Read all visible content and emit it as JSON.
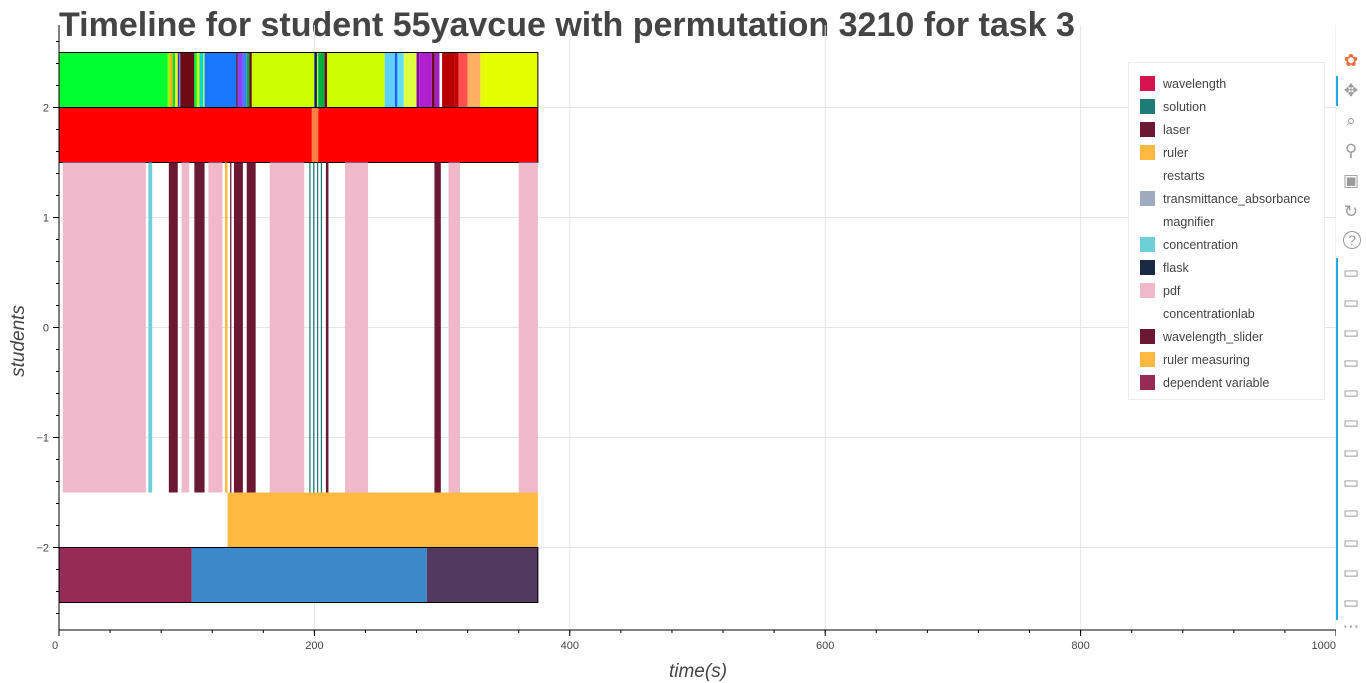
{
  "title": "Timeline for student 55yavcue with permutation 3210 for task 3",
  "chart_data": {
    "type": "timeline",
    "title": "Timeline for student 55yavcue with permutation 3210 for task 3",
    "xlabel": "time(s)",
    "ylabel": "students",
    "xlim": [
      0,
      1000
    ],
    "ylim": [
      -2.75,
      2.75
    ],
    "x_ticks": [
      0,
      200,
      400,
      600,
      800,
      1000
    ],
    "y_ticks": [
      -2,
      -1,
      0,
      1,
      2
    ],
    "y_tick_labels": [
      "−2",
      "−1",
      "0",
      "1",
      "2"
    ],
    "grid": true,
    "legend_position": "top-right",
    "legend": [
      {
        "label": "wavelength",
        "color": "#d6144f"
      },
      {
        "label": "solution",
        "color": "#1f7b76"
      },
      {
        "label": "laser",
        "color": "#6b1832"
      },
      {
        "label": "ruler",
        "color": "#ffb940"
      },
      {
        "label": "restarts",
        "color": "#ffffff"
      },
      {
        "label": "transmittance_absorbance",
        "color": "#9eabbf"
      },
      {
        "label": "magnifier",
        "color": "#ffffff"
      },
      {
        "label": "concentration",
        "color": "#6ecfd8"
      },
      {
        "label": "flask",
        "color": "#1a2a44"
      },
      {
        "label": "pdf",
        "color": "#f0b8cb"
      },
      {
        "label": "concentrationlab",
        "color": "#ffffff"
      },
      {
        "label": "wavelength_slider",
        "color": "#6b1832"
      },
      {
        "label": "ruler measuring",
        "color": "#ffb940"
      },
      {
        "label": "dependent variable",
        "color": "#962b55"
      }
    ],
    "rows": [
      {
        "y0": 2.0,
        "y1": 2.5,
        "outline": true,
        "segments": [
          [
            0,
            85,
            "#00ff2e"
          ],
          [
            85,
            87,
            "#9cf200"
          ],
          [
            87,
            89,
            "#ffb000"
          ],
          [
            89,
            91,
            "#00d640"
          ],
          [
            91,
            93,
            "#e6ff00"
          ],
          [
            93,
            94,
            "#a000c0"
          ],
          [
            94,
            95,
            "#00b4ff"
          ],
          [
            95,
            106,
            "#6e0a14"
          ],
          [
            106,
            108,
            "#00ff40"
          ],
          [
            108,
            110,
            "#d0ff00"
          ],
          [
            110,
            113,
            "#00d8d8"
          ],
          [
            113,
            114,
            "#c0ff40"
          ],
          [
            114,
            139,
            "#1a78ff"
          ],
          [
            139,
            140,
            "#6e0a14"
          ],
          [
            140,
            144,
            "#9040ff"
          ],
          [
            144,
            147,
            "#4080ff"
          ],
          [
            147,
            149,
            "#00b040"
          ],
          [
            149,
            151,
            "#6e0a14"
          ],
          [
            151,
            200,
            "#ccff00"
          ],
          [
            200,
            202,
            "#002080"
          ],
          [
            202,
            203,
            "#c0ff00"
          ],
          [
            203,
            208,
            "#00b040"
          ],
          [
            208,
            210,
            "#6e0a14"
          ],
          [
            210,
            255,
            "#ccff00"
          ],
          [
            255,
            263,
            "#60d0ff"
          ],
          [
            263,
            265,
            "#2060ff"
          ],
          [
            265,
            270,
            "#60e0ff"
          ],
          [
            270,
            280,
            "#e0ff40"
          ],
          [
            280,
            282,
            "#8000a0"
          ],
          [
            282,
            292,
            "#b020d0"
          ],
          [
            292,
            294,
            "#6e0a14"
          ],
          [
            294,
            298,
            "#a020c0"
          ],
          [
            298,
            300,
            "#ffffff"
          ],
          [
            300,
            310,
            "#b80000"
          ],
          [
            310,
            313,
            "#c80000"
          ],
          [
            313,
            320,
            "#ff5050"
          ],
          [
            320,
            330,
            "#ffb060"
          ],
          [
            330,
            350,
            "#e6ff00"
          ],
          [
            350,
            375,
            "#e6ff00"
          ]
        ]
      },
      {
        "y0": 1.5,
        "y1": 2.0,
        "outline": true,
        "segments": [
          [
            0,
            198,
            "#ff0000"
          ],
          [
            198,
            203,
            "#ff8040"
          ],
          [
            203,
            375,
            "#ff0000"
          ]
        ]
      },
      {
        "y0": -1.5,
        "y1": 1.5,
        "outline": false,
        "segments": [
          [
            3,
            68,
            "#f0b8cb"
          ],
          [
            70,
            73,
            "#6ecfd8"
          ],
          [
            86,
            93,
            "#6b1832"
          ],
          [
            96,
            102,
            "#f0b8cb"
          ],
          [
            106,
            114,
            "#6b1832"
          ],
          [
            117,
            128,
            "#f0b8cb"
          ],
          [
            130,
            132,
            "#ffb940"
          ],
          [
            134,
            135,
            "#6b1832"
          ],
          [
            137,
            144,
            "#6b1832"
          ],
          [
            147,
            154,
            "#6b1832"
          ],
          [
            165,
            192,
            "#f0b8cb"
          ],
          [
            196,
            197,
            "#1f7b76"
          ],
          [
            199,
            200,
            "#1f7b76"
          ],
          [
            202,
            203,
            "#1f7b76"
          ],
          [
            205,
            206,
            "#1f7b76"
          ],
          [
            209,
            211,
            "#6b1832"
          ],
          [
            224,
            242,
            "#f0b8cb"
          ],
          [
            294,
            299,
            "#6b1832"
          ],
          [
            305,
            314,
            "#f0b8cb"
          ],
          [
            360,
            375,
            "#f0b8cb"
          ]
        ]
      },
      {
        "y0": -2.0,
        "y1": -1.5,
        "outline": false,
        "segments": [
          [
            132,
            375,
            "#ffb940"
          ]
        ]
      },
      {
        "y0": -2.5,
        "y1": -2.0,
        "outline": true,
        "segments": [
          [
            0,
            104,
            "#962b55"
          ],
          [
            104,
            288,
            "#3d88c8"
          ],
          [
            288,
            375,
            "#52395f"
          ]
        ]
      }
    ]
  },
  "toolbar": {
    "tools": [
      {
        "name": "bokeh-logo-icon",
        "glyph": "✿",
        "color": "#e96f3c"
      },
      {
        "name": "pan-icon",
        "glyph": "✥",
        "color": "#9a9a9a"
      },
      {
        "name": "box-zoom-icon",
        "glyph": "⌕",
        "color": "#9a9a9a"
      },
      {
        "name": "wheel-zoom-icon",
        "glyph": "⚲",
        "color": "#9a9a9a"
      },
      {
        "name": "save-icon",
        "glyph": "▣",
        "color": "#9a9a9a"
      },
      {
        "name": "reset-icon",
        "glyph": "↻",
        "color": "#9a9a9a"
      },
      {
        "name": "help-icon",
        "glyph": "?",
        "color": "#9a9a9a"
      },
      {
        "name": "hover-icon",
        "glyph": "▭",
        "color": "#9a9a9a",
        "count": 12
      },
      {
        "name": "more-icon",
        "glyph": "⋯",
        "color": "#9a9a9a"
      }
    ]
  }
}
